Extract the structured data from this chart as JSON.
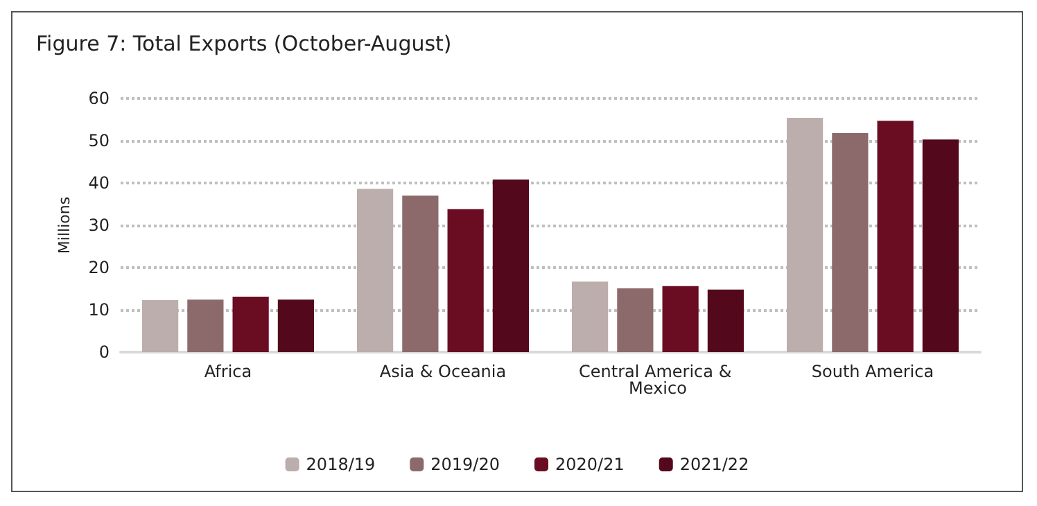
{
  "chart_data": {
    "type": "bar",
    "title": "Figure 7: Total Exports (October-August)",
    "ylabel": "Millions",
    "categories": [
      "Africa",
      "Asia & Oceania",
      "Central America & Mexico",
      "South America"
    ],
    "series": [
      {
        "name": "2018/19",
        "color": "#bcaeac",
        "values": [
          12.3,
          38.6,
          16.7,
          55.4
        ]
      },
      {
        "name": "2019/20",
        "color": "#8c6a6b",
        "values": [
          12.4,
          37.0,
          15.1,
          51.8
        ]
      },
      {
        "name": "2020/21",
        "color": "#6a0c22",
        "values": [
          13.1,
          33.8,
          15.6,
          54.7
        ]
      },
      {
        "name": "2021/22",
        "color": "#54081c",
        "values": [
          12.4,
          40.8,
          14.8,
          50.3
        ]
      }
    ],
    "ylim": [
      0,
      60
    ],
    "yticks": [
      0,
      10,
      20,
      30,
      40,
      50,
      60
    ],
    "grid": "y",
    "legend": "bottom"
  }
}
